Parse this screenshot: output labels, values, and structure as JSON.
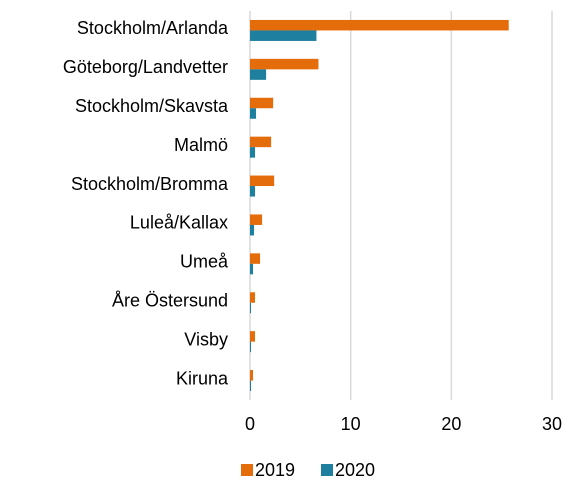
{
  "chart_data": {
    "type": "hbar",
    "categories": [
      "Stockholm/Arlanda",
      "Göteborg/Landvetter",
      "Stockholm/Skavsta",
      "Malmö",
      "Stockholm/Bromma",
      "Luleå/Kallax",
      "Umeå",
      "Åre Östersund",
      "Visby",
      "Kiruna"
    ],
    "series": [
      {
        "name": "2019",
        "color": "#e46c0a",
        "values": [
          25.7,
          6.8,
          2.3,
          2.1,
          2.4,
          1.2,
          1.0,
          0.5,
          0.5,
          0.3
        ]
      },
      {
        "name": "2020",
        "color": "#1f7f9f",
        "values": [
          6.6,
          1.6,
          0.6,
          0.5,
          0.5,
          0.4,
          0.3,
          0.1,
          0.1,
          0.1
        ]
      }
    ],
    "xlim": [
      0,
      30
    ],
    "xticks": [
      0,
      10,
      20,
      30
    ],
    "grid": true,
    "legend": "bottom"
  }
}
